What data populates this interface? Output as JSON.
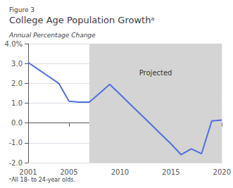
{
  "chart_data": {
    "type": "line",
    "figure_label": "Figure 3",
    "title": "College Age Population Growthᵃ",
    "subtitle": "Annual Percentage Change",
    "footnote": "ᵃAll 18- to 24-year olds.",
    "x": [
      2001,
      2002,
      2003,
      2004,
      2005,
      2006,
      2007,
      2008,
      2009,
      2010,
      2011,
      2012,
      2013,
      2014,
      2015,
      2016,
      2017,
      2018,
      2019,
      2020
    ],
    "values": [
      3.05,
      2.7,
      2.35,
      2.0,
      1.1,
      1.05,
      1.05,
      1.5,
      1.95,
      1.45,
      0.95,
      0.45,
      -0.05,
      -0.55,
      -1.05,
      -1.6,
      -1.3,
      -1.55,
      0.1,
      0.15
    ],
    "xlim": [
      2001,
      2020
    ],
    "ylim": [
      -2.0,
      4.0
    ],
    "xticks": [
      2001,
      2005,
      2010,
      2015,
      2020
    ],
    "yticks": [
      {
        "value": -2.0,
        "label": "-2.0"
      },
      {
        "value": -1.0,
        "label": "-1.0"
      },
      {
        "value": 0.0,
        "label": "0.0"
      },
      {
        "value": 1.0,
        "label": "1.0"
      },
      {
        "value": 2.0,
        "label": "2.0"
      },
      {
        "value": 3.0,
        "label": "3.0"
      },
      {
        "value": 4.0,
        "label": "4.0%"
      }
    ],
    "grid": true,
    "shaded_region": {
      "from": 2007,
      "to": 2020,
      "color": "#d4d4d4"
    },
    "annotations": [
      {
        "text": "Projected",
        "x": 2013.5,
        "y": 2.7
      }
    ]
  }
}
